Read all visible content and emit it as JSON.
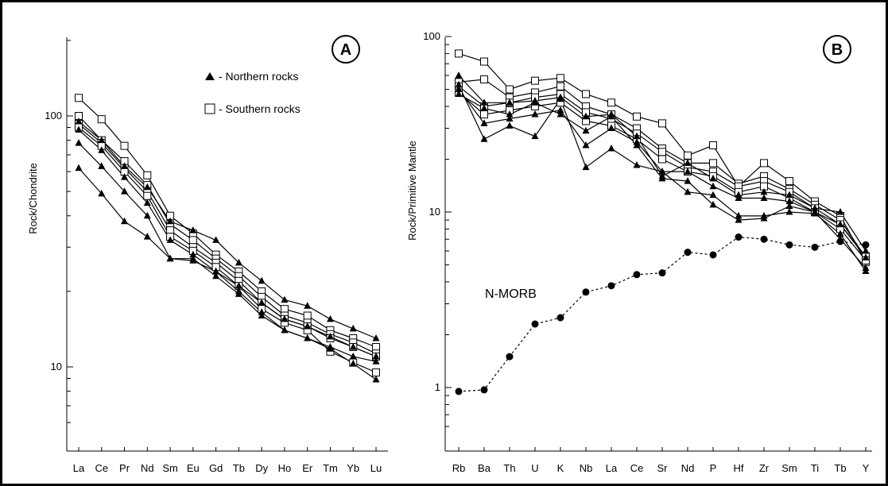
{
  "chart_data": [
    {
      "type": "line",
      "panel_label": "A",
      "ylabel": "Rock/Chondrite",
      "yscale": "log",
      "ylim": [
        5,
        200
      ],
      "yticks": [
        10,
        100
      ],
      "yticklabels": [
        "10",
        "100"
      ],
      "categories": [
        "La",
        "Ce",
        "Pr",
        "Nd",
        "Sm",
        "Eu",
        "Gd",
        "Tb",
        "Dy",
        "Ho",
        "Er",
        "Tm",
        "Yb",
        "Lu"
      ],
      "legend": {
        "placement": "top-right",
        "entries": [
          {
            "marker": "filled-triangle",
            "label": "- Northern rocks"
          },
          {
            "marker": "open-square",
            "label": "- Southern rocks"
          }
        ]
      },
      "series": [
        {
          "group": "Southern rocks",
          "marker": "open-square",
          "values": [
            118,
            97,
            76,
            58,
            40,
            34,
            28,
            24,
            20,
            17,
            16,
            14,
            13,
            12
          ]
        },
        {
          "group": "Southern rocks",
          "marker": "open-square",
          "values": [
            100,
            80,
            66,
            53,
            37,
            32,
            27,
            23,
            19,
            16,
            15,
            13.5,
            12.5,
            11.3
          ]
        },
        {
          "group": "Southern rocks",
          "marker": "open-square",
          "values": [
            93,
            78,
            62,
            50,
            35,
            30,
            26,
            22,
            18,
            15.5,
            14.5,
            13,
            12,
            11
          ]
        },
        {
          "group": "Southern rocks",
          "marker": "open-square",
          "values": [
            90,
            76,
            60,
            48,
            33,
            29,
            25,
            21,
            17,
            15,
            14,
            11.5,
            10.4,
            9.5
          ]
        },
        {
          "group": "Northern rocks",
          "marker": "filled-triangle",
          "values": [
            95,
            80,
            63,
            52,
            38,
            35,
            32,
            26,
            22,
            18.5,
            17.5,
            15.5,
            14.2,
            13
          ]
        },
        {
          "group": "Northern rocks",
          "marker": "filled-triangle",
          "values": [
            88,
            73,
            57,
            45,
            32,
            28,
            24,
            20,
            16.5,
            14,
            13,
            11.8,
            10.3,
            8.9
          ]
        },
        {
          "group": "Northern rocks",
          "marker": "filled-triangle",
          "values": [
            78,
            63,
            50,
            40,
            27,
            27,
            23,
            19.5,
            16,
            14,
            13,
            12,
            11,
            10.5
          ]
        },
        {
          "group": "Northern rocks",
          "marker": "filled-triangle",
          "values": [
            62,
            49,
            38,
            33,
            27,
            26.5,
            24,
            21,
            18,
            15.5,
            14.5,
            13.2,
            12,
            11
          ]
        }
      ]
    },
    {
      "type": "line",
      "panel_label": "B",
      "ylabel": "Rock/Primitive Mantle",
      "yscale": "log",
      "ylim": [
        0.5,
        100
      ],
      "yticks": [
        1,
        10,
        100
      ],
      "yticklabels": [
        "1",
        "10",
        "100"
      ],
      "categories": [
        "Rb",
        "Ba",
        "Th",
        "U",
        "K",
        "Nb",
        "La",
        "Ce",
        "Sr",
        "Nd",
        "P",
        "Hf",
        "Zr",
        "Sm",
        "Ti",
        "Tb",
        "Y"
      ],
      "annotation": "N-MORB",
      "series": [
        {
          "group": "Southern rocks",
          "marker": "open-square",
          "values": [
            80,
            72,
            50,
            56,
            58,
            47,
            42,
            35,
            32,
            21,
            24,
            14,
            19,
            15,
            11.5,
            9.5,
            5.2
          ]
        },
        {
          "group": "Southern rocks",
          "marker": "open-square",
          "values": [
            55,
            57,
            45,
            48,
            52,
            40,
            36,
            30,
            23,
            19,
            19,
            14.5,
            16,
            13.5,
            11,
            9,
            5.5
          ]
        },
        {
          "group": "Southern rocks",
          "marker": "open-square",
          "values": [
            52,
            40,
            42,
            45,
            47,
            37,
            34,
            28,
            22,
            18,
            17,
            14,
            15,
            13,
            10.5,
            8.5,
            5.6
          ]
        },
        {
          "group": "Southern rocks",
          "marker": "open-square",
          "values": [
            48,
            36,
            38,
            40,
            42,
            33,
            31,
            26,
            20,
            17,
            16,
            13,
            14,
            12,
            10,
            8,
            5.3
          ]
        },
        {
          "group": "Northern rocks",
          "marker": "filled-triangle",
          "values": [
            60,
            42,
            42,
            43,
            45,
            35,
            36,
            27,
            16,
            19,
            15.5,
            12.5,
            13,
            12.5,
            10.5,
            10,
            6
          ]
        },
        {
          "group": "Northern rocks",
          "marker": "filled-triangle",
          "values": [
            50,
            32,
            34,
            36,
            38,
            24,
            30,
            25,
            17,
            17,
            14,
            12,
            12,
            11.5,
            10,
            8.5,
            5.5
          ]
        },
        {
          "group": "Northern rocks",
          "marker": "filled-triangle",
          "values": [
            53,
            26,
            31,
            27,
            44,
            18,
            23,
            18.5,
            17,
            13,
            12.5,
            9.5,
            9.5,
            10,
            9.8,
            7.5,
            4.6
          ]
        },
        {
          "group": "Northern rocks",
          "marker": "filled-triangle",
          "values": [
            47,
            39,
            36,
            42,
            36,
            29,
            35,
            24,
            15.5,
            15,
            11,
            9,
            9.2,
            10.8,
            10,
            7,
            4.8
          ]
        },
        {
          "name": "N-MORB",
          "marker": "filled-circle",
          "dashed": true,
          "values": [
            0.95,
            0.97,
            1.5,
            2.3,
            2.5,
            3.5,
            3.8,
            4.4,
            4.5,
            5.9,
            5.7,
            7.2,
            7.0,
            6.5,
            6.3,
            6.8,
            6.5
          ]
        }
      ]
    }
  ]
}
